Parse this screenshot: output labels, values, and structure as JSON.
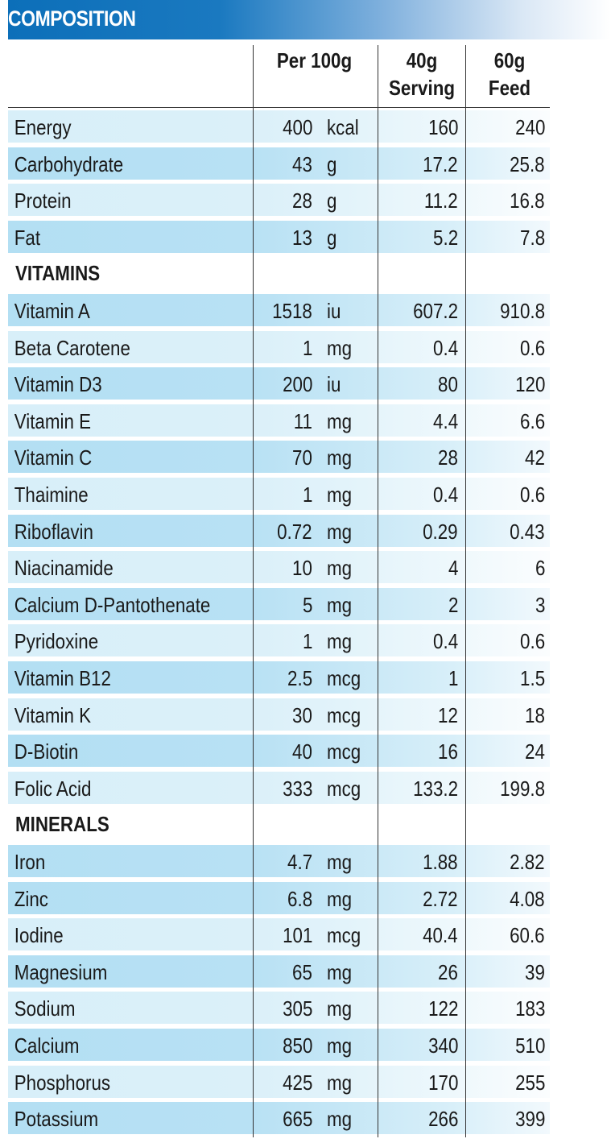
{
  "title": "COMPOSITION",
  "columns": {
    "per100": "Per 100g",
    "serving_line1": "40g",
    "serving_line2": "Serving",
    "feed_line1": "60g",
    "feed_line2": "Feed"
  },
  "sections": [
    {
      "heading": "",
      "rows": [
        {
          "name": "Energy",
          "value": "400",
          "unit": "kcal",
          "serving": "160",
          "feed": "240"
        },
        {
          "name": "Carbohydrate",
          "value": "43",
          "unit": "g",
          "serving": "17.2",
          "feed": "25.8"
        },
        {
          "name": "Protein",
          "value": "28",
          "unit": "g",
          "serving": "11.2",
          "feed": "16.8"
        },
        {
          "name": "Fat",
          "value": "13",
          "unit": "g",
          "serving": "5.2",
          "feed": "7.8"
        }
      ]
    },
    {
      "heading": "VITAMINS",
      "rows": [
        {
          "name": "Vitamin A",
          "value": "1518",
          "unit": "iu",
          "serving": "607.2",
          "feed": "910.8"
        },
        {
          "name": "Beta Carotene",
          "value": "1",
          "unit": "mg",
          "serving": "0.4",
          "feed": "0.6"
        },
        {
          "name": "Vitamin D3",
          "value": "200",
          "unit": "iu",
          "serving": "80",
          "feed": "120"
        },
        {
          "name": "Vitamin E",
          "value": "11",
          "unit": "mg",
          "serving": "4.4",
          "feed": "6.6"
        },
        {
          "name": "Vitamin C",
          "value": "70",
          "unit": "mg",
          "serving": "28",
          "feed": "42"
        },
        {
          "name": "Thaimine",
          "value": "1",
          "unit": "mg",
          "serving": "0.4",
          "feed": "0.6"
        },
        {
          "name": "Riboflavin",
          "value": "0.72",
          "unit": "mg",
          "serving": "0.29",
          "feed": "0.43"
        },
        {
          "name": "Niacinamide",
          "value": "10",
          "unit": "mg",
          "serving": "4",
          "feed": "6"
        },
        {
          "name": "Calcium D-Pantothenate",
          "value": "5",
          "unit": "mg",
          "serving": "2",
          "feed": "3"
        },
        {
          "name": "Pyridoxine",
          "value": "1",
          "unit": "mg",
          "serving": "0.4",
          "feed": "0.6"
        },
        {
          "name": "Vitamin B12",
          "value": "2.5",
          "unit": "mcg",
          "serving": "1",
          "feed": "1.5"
        },
        {
          "name": "Vitamin K",
          "value": "30",
          "unit": "mcg",
          "serving": "12",
          "feed": "18"
        },
        {
          "name": "D-Biotin",
          "value": "40",
          "unit": "mcg",
          "serving": "16",
          "feed": "24"
        },
        {
          "name": "Folic Acid",
          "value": "333",
          "unit": "mcg",
          "serving": "133.2",
          "feed": "199.8"
        }
      ]
    },
    {
      "heading": "MINERALS",
      "rows": [
        {
          "name": "Iron",
          "value": "4.7",
          "unit": "mg",
          "serving": "1.88",
          "feed": "2.82"
        },
        {
          "name": "Zinc",
          "value": "6.8",
          "unit": "mg",
          "serving": "2.72",
          "feed": "4.08"
        },
        {
          "name": "Iodine",
          "value": "101",
          "unit": "mcg",
          "serving": "40.4",
          "feed": "60.6"
        },
        {
          "name": "Magnesium",
          "value": "65",
          "unit": "mg",
          "serving": "26",
          "feed": "39"
        },
        {
          "name": "Sodium",
          "value": "305",
          "unit": "mg",
          "serving": "122",
          "feed": "183"
        },
        {
          "name": "Calcium",
          "value": "850",
          "unit": "mg",
          "serving": "340",
          "feed": "510"
        },
        {
          "name": "Phosphorus",
          "value": "425",
          "unit": "mg",
          "serving": "170",
          "feed": "255"
        },
        {
          "name": "Potassium",
          "value": "665",
          "unit": "mg",
          "serving": "266",
          "feed": "399"
        }
      ]
    }
  ]
}
